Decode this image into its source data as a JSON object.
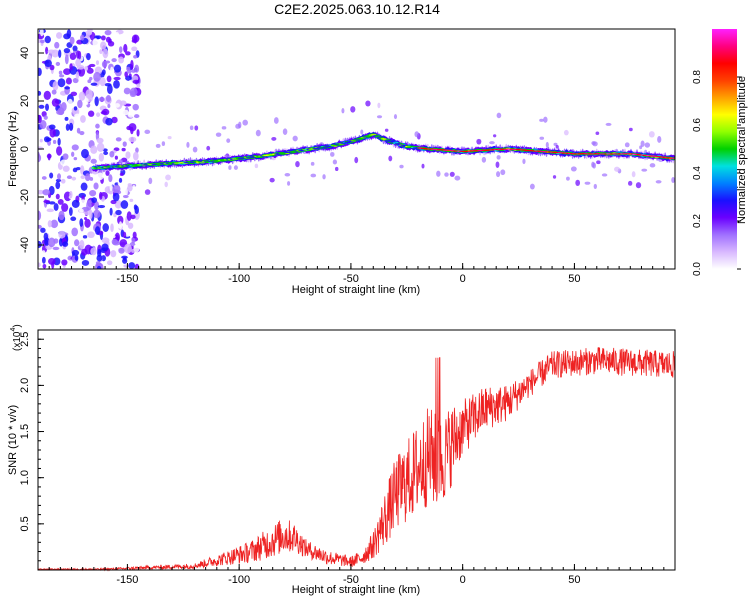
{
  "title": "C2E2.2025.063.10.12.R14",
  "chart_data": [
    {
      "type": "heatmap",
      "xlabel": "Height of straight line (km)",
      "ylabel": "Frequency (Hz)",
      "xlim": [
        -190,
        95
      ],
      "ylim": [
        -50,
        50
      ],
      "x_ticks": [
        -150,
        -100,
        -50,
        0,
        50
      ],
      "y_ticks": [
        -40,
        -20,
        0,
        20,
        40
      ],
      "ridge": {
        "x": [
          -165,
          -150,
          -130,
          -110,
          -90,
          -75,
          -60,
          -50,
          -40,
          -35,
          -25,
          -15,
          0,
          20,
          50,
          75,
          95
        ],
        "y": [
          -8,
          -7,
          -6,
          -5,
          -3,
          -1,
          1,
          3,
          6,
          4,
          1,
          0,
          -1,
          0,
          -2,
          -2,
          -4
        ]
      },
      "noise_region_x": [
        -190,
        -145
      ],
      "colorbar": {
        "label": "Normalized spectral amplitude",
        "range": [
          0.0,
          1.0
        ],
        "ticks": [
          "0.0",
          "0.2",
          "0.4",
          "0.6",
          "0.8"
        ],
        "colors": [
          "#ffffff",
          "#d8b8ff",
          "#a070ff",
          "#6a00ff",
          "#1a10ff",
          "#0080ff",
          "#00e0e0",
          "#00d000",
          "#90ff00",
          "#ffff00",
          "#ffa000",
          "#ff4000",
          "#ff0000",
          "#ff0080",
          "#ff20ff"
        ]
      }
    },
    {
      "type": "line",
      "xlabel": "Height of straight line (km)",
      "ylabel": "SNR (10 * v/v)",
      "scale_label": "(x10",
      "scale_exp": "4",
      "xlim": [
        -190,
        95
      ],
      "ylim": [
        0,
        2.6
      ],
      "x_ticks": [
        -150,
        -100,
        -50,
        0,
        50
      ],
      "y_ticks": [
        0.5,
        1.0,
        1.5,
        2.0,
        2.5
      ],
      "series": [
        {
          "color": "#ee2222",
          "envelope_x": [
            -190,
            -160,
            -140,
            -120,
            -105,
            -95,
            -85,
            -80,
            -75,
            -70,
            -60,
            -50,
            -45,
            -40,
            -35,
            -30,
            -25,
            -20,
            -15,
            -10,
            -5,
            0,
            10,
            20,
            30,
            40,
            60,
            95
          ],
          "envelope_y": [
            0.01,
            0.01,
            0.03,
            0.05,
            0.15,
            0.22,
            0.35,
            0.42,
            0.38,
            0.25,
            0.15,
            0.1,
            0.15,
            0.3,
            0.6,
            0.9,
            1.05,
            1.2,
            1.35,
            1.25,
            1.45,
            1.6,
            1.8,
            1.85,
            2.05,
            2.25,
            2.3,
            2.25
          ],
          "amplitude_y": [
            0.005,
            0.01,
            0.02,
            0.03,
            0.08,
            0.12,
            0.18,
            0.2,
            0.16,
            0.1,
            0.08,
            0.06,
            0.08,
            0.15,
            0.3,
            0.4,
            0.45,
            0.5,
            0.55,
            0.5,
            0.45,
            0.3,
            0.25,
            0.2,
            0.15,
            0.15,
            0.15,
            0.15
          ]
        }
      ]
    }
  ]
}
